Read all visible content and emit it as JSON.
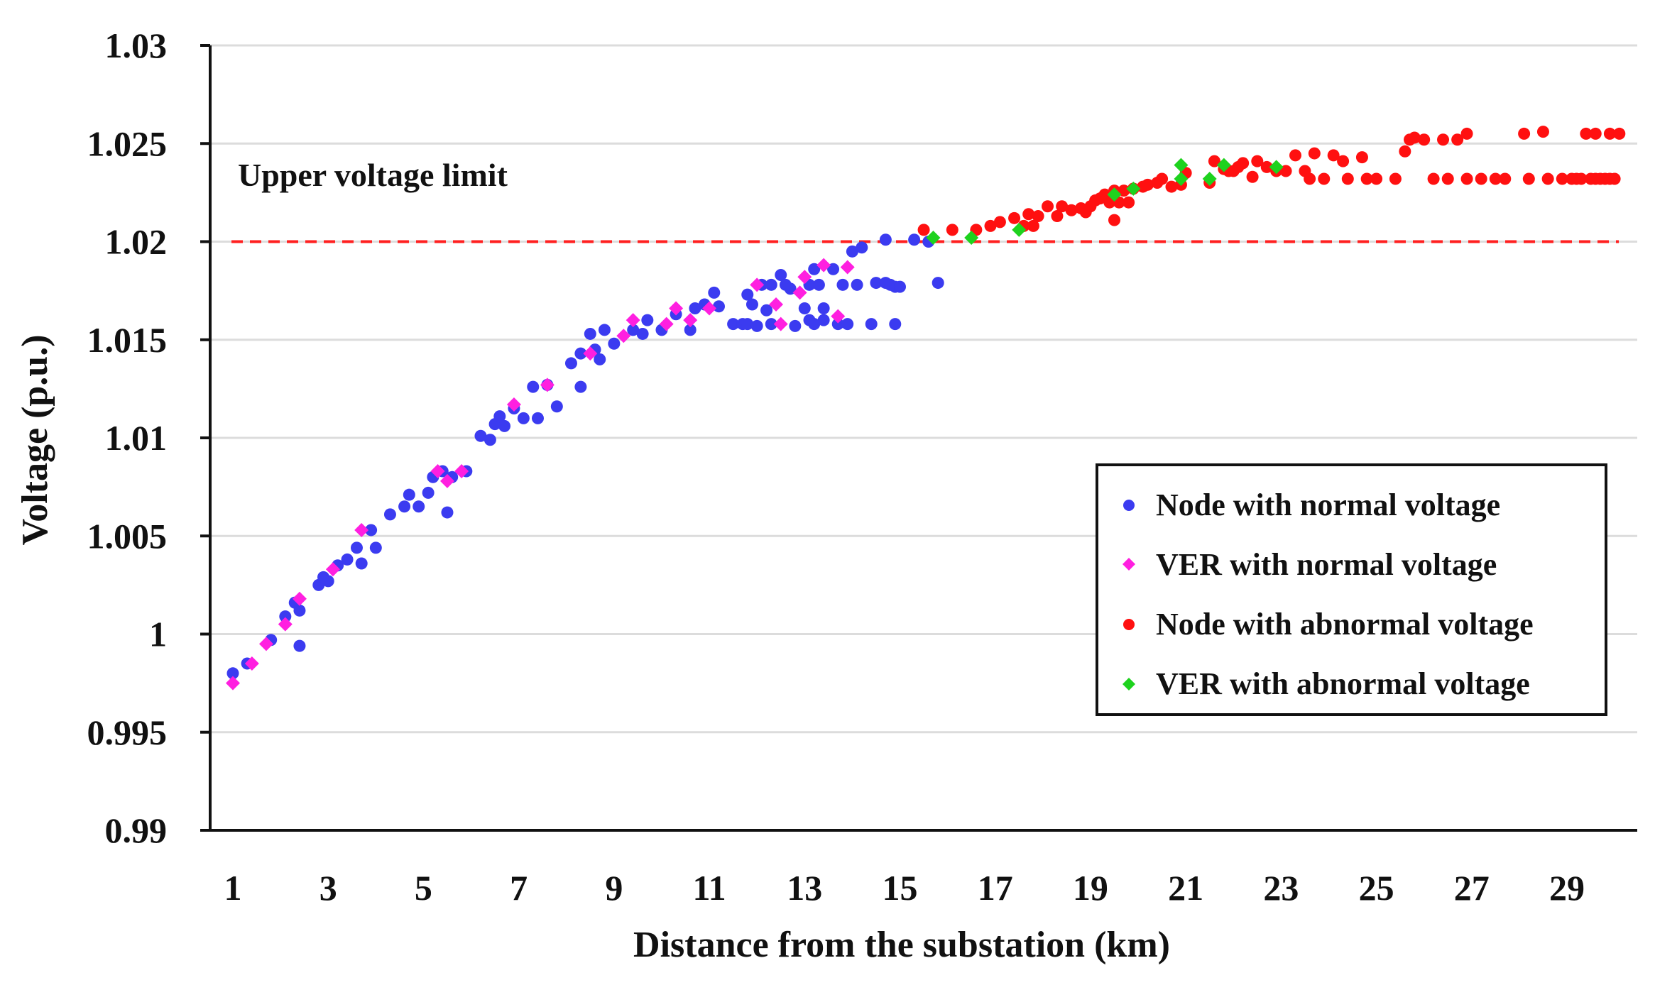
{
  "chart_data": {
    "type": "scatter",
    "title": "",
    "xlabel": "Distance from the substation (km)",
    "ylabel": "Voltage (p.u.)",
    "xlim": [
      0.6,
      30.3
    ],
    "ylim": [
      0.99,
      1.03
    ],
    "x_ticks": [
      "1",
      "3",
      "5",
      "7",
      "9",
      "11",
      "13",
      "15",
      "17",
      "19",
      "21",
      "23",
      "25",
      "27",
      "29"
    ],
    "x_tick_values": [
      1,
      3,
      5,
      7,
      9,
      11,
      13,
      15,
      17,
      19,
      21,
      23,
      25,
      27,
      29
    ],
    "y_ticks": [
      "0.99",
      "0.995",
      "1",
      "1.005",
      "1.01",
      "1.015",
      "1.02",
      "1.025",
      "1.03"
    ],
    "y_tick_values": [
      0.99,
      0.995,
      1.0,
      1.005,
      1.01,
      1.015,
      1.02,
      1.025,
      1.03
    ],
    "grid": "horizontal",
    "legend_position": "lower-right",
    "reference_line": {
      "y": 1.02,
      "label": "Upper voltage limit",
      "color": "#ff2020",
      "style": "dashed"
    },
    "colors": {
      "node_normal": "#3b3bf0",
      "ver_normal": "#ff1fe0",
      "node_abnormal": "#ff1010",
      "ver_abnormal": "#1ed21e",
      "grid": "#dcdcdc"
    },
    "series": [
      {
        "name": "Node with normal voltage",
        "marker": "circle",
        "color": "#3b3bf0",
        "points": [
          [
            1.0,
            0.998
          ],
          [
            1.3,
            0.9985
          ],
          [
            1.8,
            0.9997
          ],
          [
            2.1,
            1.0009
          ],
          [
            2.3,
            1.0016
          ],
          [
            2.4,
            1.0012
          ],
          [
            2.4,
            0.9994
          ],
          [
            2.8,
            1.0025
          ],
          [
            2.9,
            1.0029
          ],
          [
            3.0,
            1.0027
          ],
          [
            3.2,
            1.0035
          ],
          [
            3.4,
            1.0038
          ],
          [
            3.6,
            1.0044
          ],
          [
            3.7,
            1.0036
          ],
          [
            3.9,
            1.0053
          ],
          [
            4.0,
            1.0044
          ],
          [
            4.3,
            1.0061
          ],
          [
            4.6,
            1.0065
          ],
          [
            4.7,
            1.0071
          ],
          [
            4.9,
            1.0065
          ],
          [
            5.1,
            1.0072
          ],
          [
            5.2,
            1.008
          ],
          [
            5.4,
            1.0083
          ],
          [
            5.5,
            1.0062
          ],
          [
            5.6,
            1.008
          ],
          [
            5.9,
            1.0083
          ],
          [
            6.2,
            1.0101
          ],
          [
            6.4,
            1.0099
          ],
          [
            6.5,
            1.0107
          ],
          [
            6.6,
            1.0111
          ],
          [
            6.7,
            1.0106
          ],
          [
            6.9,
            1.0115
          ],
          [
            7.1,
            1.011
          ],
          [
            7.3,
            1.0126
          ],
          [
            7.4,
            1.011
          ],
          [
            7.6,
            1.0127
          ],
          [
            7.8,
            1.0116
          ],
          [
            8.1,
            1.0138
          ],
          [
            8.3,
            1.0143
          ],
          [
            8.3,
            1.0126
          ],
          [
            8.5,
            1.0153
          ],
          [
            8.6,
            1.0145
          ],
          [
            8.7,
            1.014
          ],
          [
            8.8,
            1.0155
          ],
          [
            9.0,
            1.0148
          ],
          [
            9.4,
            1.0155
          ],
          [
            9.6,
            1.0153
          ],
          [
            9.7,
            1.016
          ],
          [
            10.0,
            1.0155
          ],
          [
            10.3,
            1.0163
          ],
          [
            10.6,
            1.0155
          ],
          [
            10.7,
            1.0166
          ],
          [
            10.9,
            1.0168
          ],
          [
            11.1,
            1.0174
          ],
          [
            11.2,
            1.0167
          ],
          [
            11.5,
            1.0158
          ],
          [
            11.7,
            1.0158
          ],
          [
            11.8,
            1.0173
          ],
          [
            11.8,
            1.0158
          ],
          [
            11.9,
            1.0168
          ],
          [
            12.0,
            1.0157
          ],
          [
            12.1,
            1.0178
          ],
          [
            12.2,
            1.0165
          ],
          [
            12.3,
            1.0158
          ],
          [
            12.3,
            1.0178
          ],
          [
            12.5,
            1.0183
          ],
          [
            12.6,
            1.0178
          ],
          [
            12.7,
            1.0176
          ],
          [
            12.8,
            1.0157
          ],
          [
            13.0,
            1.0166
          ],
          [
            13.1,
            1.016
          ],
          [
            13.1,
            1.0178
          ],
          [
            13.2,
            1.0186
          ],
          [
            13.2,
            1.0158
          ],
          [
            13.3,
            1.0178
          ],
          [
            13.4,
            1.0166
          ],
          [
            13.4,
            1.016
          ],
          [
            13.6,
            1.0186
          ],
          [
            13.7,
            1.0158
          ],
          [
            13.8,
            1.0178
          ],
          [
            13.9,
            1.0158
          ],
          [
            14.0,
            1.0195
          ],
          [
            14.1,
            1.0178
          ],
          [
            14.2,
            1.0197
          ],
          [
            14.4,
            1.0158
          ],
          [
            14.5,
            1.0179
          ],
          [
            14.7,
            1.0179
          ],
          [
            14.7,
            1.0201
          ],
          [
            14.8,
            1.0178
          ],
          [
            14.9,
            1.0158
          ],
          [
            14.9,
            1.0177
          ],
          [
            15.0,
            1.0177
          ],
          [
            15.3,
            1.0201
          ],
          [
            15.6,
            1.02
          ],
          [
            15.8,
            1.0179
          ]
        ]
      },
      {
        "name": "VER with normal voltage",
        "marker": "diamond",
        "color": "#ff1fe0",
        "points": [
          [
            1.0,
            0.9975
          ],
          [
            1.4,
            0.9985
          ],
          [
            1.7,
            0.9995
          ],
          [
            2.1,
            1.0005
          ],
          [
            2.4,
            1.0018
          ],
          [
            3.1,
            1.0033
          ],
          [
            3.7,
            1.0053
          ],
          [
            5.3,
            1.0083
          ],
          [
            5.5,
            1.0078
          ],
          [
            5.8,
            1.0083
          ],
          [
            6.9,
            1.0117
          ],
          [
            7.6,
            1.0127
          ],
          [
            8.5,
            1.0143
          ],
          [
            9.2,
            1.0152
          ],
          [
            9.4,
            1.016
          ],
          [
            10.1,
            1.0158
          ],
          [
            10.3,
            1.0166
          ],
          [
            10.6,
            1.016
          ],
          [
            11.0,
            1.0166
          ],
          [
            12.0,
            1.0178
          ],
          [
            12.4,
            1.0168
          ],
          [
            12.5,
            1.0158
          ],
          [
            12.9,
            1.0174
          ],
          [
            13.0,
            1.0182
          ],
          [
            13.4,
            1.0188
          ],
          [
            13.7,
            1.0162
          ],
          [
            13.9,
            1.0187
          ]
        ]
      },
      {
        "name": "Node with abnormal voltage",
        "marker": "circle",
        "color": "#ff1010",
        "points": [
          [
            15.5,
            1.0206
          ],
          [
            16.1,
            1.0206
          ],
          [
            16.6,
            1.0206
          ],
          [
            16.9,
            1.0208
          ],
          [
            17.1,
            1.021
          ],
          [
            17.4,
            1.0212
          ],
          [
            17.6,
            1.0208
          ],
          [
            17.7,
            1.0214
          ],
          [
            17.8,
            1.0208
          ],
          [
            17.9,
            1.0213
          ],
          [
            18.1,
            1.0218
          ],
          [
            18.3,
            1.0213
          ],
          [
            18.4,
            1.0218
          ],
          [
            18.6,
            1.0216
          ],
          [
            18.8,
            1.0217
          ],
          [
            18.9,
            1.0215
          ],
          [
            19.0,
            1.0218
          ],
          [
            19.1,
            1.0221
          ],
          [
            19.2,
            1.0222
          ],
          [
            19.3,
            1.0224
          ],
          [
            19.4,
            1.022
          ],
          [
            19.5,
            1.0226
          ],
          [
            19.5,
            1.0211
          ],
          [
            19.6,
            1.022
          ],
          [
            19.7,
            1.0226
          ],
          [
            19.8,
            1.022
          ],
          [
            19.9,
            1.0227
          ],
          [
            20.1,
            1.0228
          ],
          [
            20.2,
            1.0229
          ],
          [
            20.4,
            1.023
          ],
          [
            20.5,
            1.0232
          ],
          [
            20.7,
            1.0228
          ],
          [
            20.9,
            1.0229
          ],
          [
            21.0,
            1.0235
          ],
          [
            21.5,
            1.023
          ],
          [
            21.6,
            1.0241
          ],
          [
            21.8,
            1.0237
          ],
          [
            21.9,
            1.0236
          ],
          [
            22.0,
            1.0236
          ],
          [
            22.1,
            1.0238
          ],
          [
            22.2,
            1.024
          ],
          [
            22.4,
            1.0233
          ],
          [
            22.5,
            1.0241
          ],
          [
            22.7,
            1.0238
          ],
          [
            22.9,
            1.0236
          ],
          [
            23.1,
            1.0236
          ],
          [
            23.3,
            1.0244
          ],
          [
            23.5,
            1.0236
          ],
          [
            23.6,
            1.0232
          ],
          [
            23.7,
            1.0245
          ],
          [
            23.9,
            1.0232
          ],
          [
            24.1,
            1.0244
          ],
          [
            24.3,
            1.0241
          ],
          [
            24.4,
            1.0232
          ],
          [
            24.7,
            1.0243
          ],
          [
            24.8,
            1.0232
          ],
          [
            25.0,
            1.0232
          ],
          [
            25.4,
            1.0232
          ],
          [
            25.6,
            1.0246
          ],
          [
            25.7,
            1.0252
          ],
          [
            25.8,
            1.0253
          ],
          [
            26.0,
            1.0252
          ],
          [
            26.2,
            1.0232
          ],
          [
            26.4,
            1.0252
          ],
          [
            26.5,
            1.0232
          ],
          [
            26.7,
            1.0252
          ],
          [
            26.9,
            1.0255
          ],
          [
            26.9,
            1.0232
          ],
          [
            27.2,
            1.0232
          ],
          [
            27.5,
            1.0232
          ],
          [
            27.7,
            1.0232
          ],
          [
            28.1,
            1.0255
          ],
          [
            28.2,
            1.0232
          ],
          [
            28.5,
            1.0256
          ],
          [
            28.6,
            1.0232
          ],
          [
            28.9,
            1.0232
          ],
          [
            29.1,
            1.0232
          ],
          [
            29.2,
            1.0232
          ],
          [
            29.3,
            1.0232
          ],
          [
            29.5,
            1.0232
          ],
          [
            29.6,
            1.0232
          ],
          [
            29.7,
            1.0232
          ],
          [
            29.8,
            1.0232
          ],
          [
            29.9,
            1.0232
          ],
          [
            30.0,
            1.0232
          ],
          [
            29.4,
            1.0255
          ],
          [
            29.6,
            1.0255
          ],
          [
            29.9,
            1.0255
          ],
          [
            30.1,
            1.0255
          ]
        ]
      },
      {
        "name": "VER with abnormal voltage",
        "marker": "diamond",
        "color": "#1ed21e",
        "points": [
          [
            15.7,
            1.0202
          ],
          [
            16.5,
            1.0202
          ],
          [
            17.5,
            1.0206
          ],
          [
            19.5,
            1.0224
          ],
          [
            19.9,
            1.0227
          ],
          [
            20.9,
            1.0232
          ],
          [
            20.9,
            1.0239
          ],
          [
            21.5,
            1.0232
          ],
          [
            21.8,
            1.0239
          ],
          [
            22.9,
            1.0238
          ]
        ]
      }
    ]
  }
}
